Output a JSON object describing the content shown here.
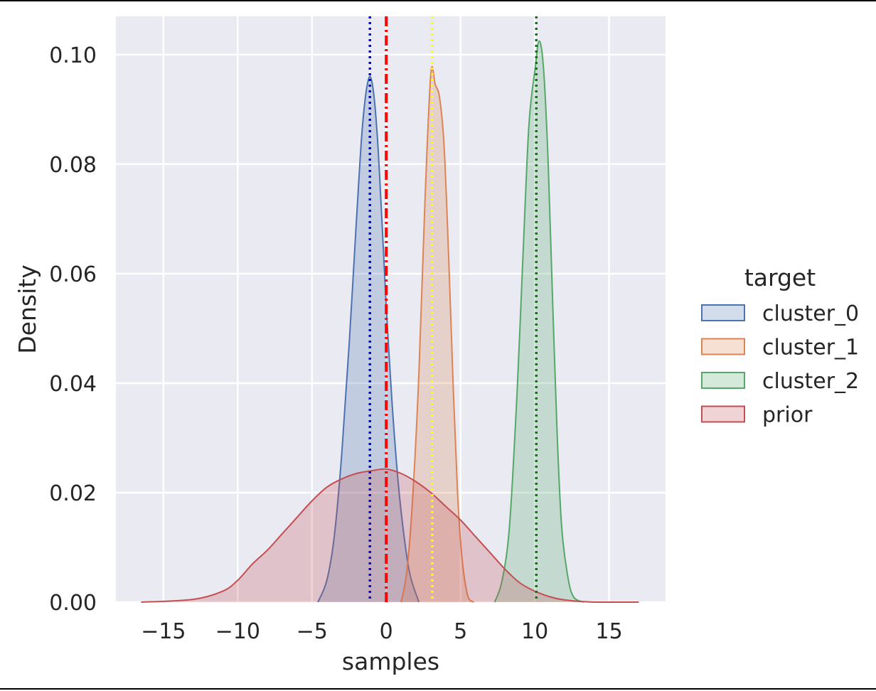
{
  "chart_data": {
    "type": "area",
    "title": "",
    "xlabel": "samples",
    "ylabel": "Density",
    "xlim": [
      -18.2,
      18.8
    ],
    "ylim": [
      0,
      0.107
    ],
    "xticks": [
      -15,
      -10,
      -5,
      0,
      5,
      10,
      15
    ],
    "xtick_labels": [
      "−15",
      "−10",
      "−5",
      "0",
      "5",
      "10",
      "15"
    ],
    "yticks": [
      0.0,
      0.02,
      0.04,
      0.06,
      0.08,
      0.1
    ],
    "ytick_labels": [
      "0.00",
      "0.02",
      "0.04",
      "0.06",
      "0.08",
      "0.10"
    ],
    "grid": true,
    "background": "#eaeaf2",
    "legend": {
      "title": "target",
      "placement": "outside-right"
    },
    "series": [
      {
        "name": "cluster_0",
        "color": "#4c72b0",
        "points": [
          [
            -4.6,
            0.0
          ],
          [
            -4.0,
            0.004
          ],
          [
            -3.5,
            0.012
          ],
          [
            -3.0,
            0.027
          ],
          [
            -2.5,
            0.047
          ],
          [
            -2.0,
            0.07
          ],
          [
            -1.6,
            0.087
          ],
          [
            -1.2,
            0.0955
          ],
          [
            -0.9,
            0.094
          ],
          [
            -0.6,
            0.085
          ],
          [
            -0.3,
            0.07
          ],
          [
            0.0,
            0.054
          ],
          [
            0.4,
            0.036
          ],
          [
            0.8,
            0.022
          ],
          [
            1.2,
            0.012
          ],
          [
            1.6,
            0.005
          ],
          [
            2.2,
            0.0
          ]
        ]
      },
      {
        "name": "cluster_1",
        "color": "#dd8452",
        "points": [
          [
            1.0,
            0.0
          ],
          [
            1.4,
            0.006
          ],
          [
            1.8,
            0.02
          ],
          [
            2.2,
            0.042
          ],
          [
            2.6,
            0.073
          ],
          [
            3.0,
            0.0965
          ],
          [
            3.3,
            0.0945
          ],
          [
            3.6,
            0.092
          ],
          [
            3.9,
            0.083
          ],
          [
            4.2,
            0.063
          ],
          [
            4.5,
            0.04
          ],
          [
            4.8,
            0.02
          ],
          [
            5.1,
            0.008
          ],
          [
            5.5,
            0.001
          ],
          [
            5.9,
            0.0
          ]
        ]
      },
      {
        "name": "cluster_2",
        "color": "#55a868",
        "points": [
          [
            7.3,
            0.0
          ],
          [
            7.8,
            0.004
          ],
          [
            8.3,
            0.014
          ],
          [
            8.8,
            0.038
          ],
          [
            9.2,
            0.063
          ],
          [
            9.6,
            0.087
          ],
          [
            10.0,
            0.097
          ],
          [
            10.3,
            0.1025
          ],
          [
            10.6,
            0.097
          ],
          [
            10.9,
            0.08
          ],
          [
            11.2,
            0.055
          ],
          [
            11.5,
            0.031
          ],
          [
            11.8,
            0.014
          ],
          [
            12.2,
            0.005
          ],
          [
            12.6,
            0.001
          ],
          [
            13.3,
            0.0
          ]
        ]
      },
      {
        "name": "prior",
        "color": "#c44e52",
        "points": [
          [
            -16.5,
            0.0
          ],
          [
            -13.0,
            0.0005
          ],
          [
            -11.0,
            0.002
          ],
          [
            -10.0,
            0.004
          ],
          [
            -9.0,
            0.007
          ],
          [
            -8.0,
            0.0095
          ],
          [
            -7.0,
            0.0125
          ],
          [
            -6.0,
            0.0155
          ],
          [
            -5.0,
            0.0185
          ],
          [
            -4.0,
            0.021
          ],
          [
            -3.0,
            0.0225
          ],
          [
            -2.0,
            0.0235
          ],
          [
            -1.0,
            0.024
          ],
          [
            0.0,
            0.0243
          ],
          [
            1.0,
            0.0235
          ],
          [
            2.0,
            0.022
          ],
          [
            3.0,
            0.02
          ],
          [
            4.0,
            0.0175
          ],
          [
            5.0,
            0.015
          ],
          [
            6.0,
            0.012
          ],
          [
            7.0,
            0.009
          ],
          [
            8.0,
            0.006
          ],
          [
            9.0,
            0.0035
          ],
          [
            10.0,
            0.002
          ],
          [
            11.0,
            0.001
          ],
          [
            12.0,
            0.0004
          ],
          [
            14.0,
            0.0
          ],
          [
            17.0,
            0.0
          ]
        ]
      }
    ],
    "vlines": [
      {
        "x": -1.1,
        "color": "#0000ff",
        "style": "dotted"
      },
      {
        "x": 0.0,
        "color": "#ff0000",
        "style": "dashdot"
      },
      {
        "x": 3.1,
        "color": "#ffff00",
        "style": "dotted"
      },
      {
        "x": 10.1,
        "color": "#008000",
        "style": "dotted"
      }
    ]
  }
}
